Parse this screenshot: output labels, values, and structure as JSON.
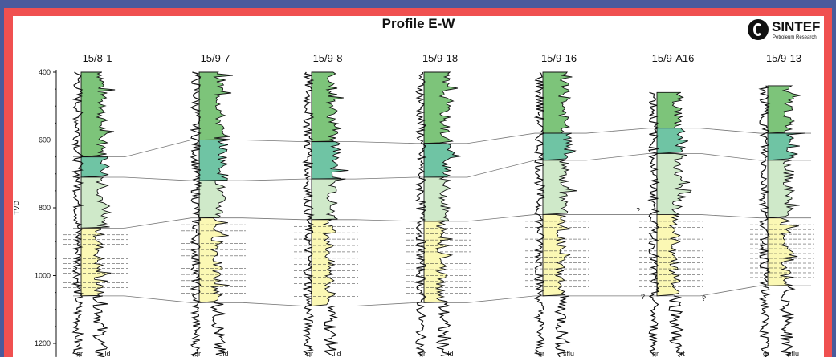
{
  "title": "Profile E-W",
  "logo": {
    "name": "SINTEF",
    "subtitle": "Petroleum Research"
  },
  "depth_axis": {
    "label": "TVD",
    "ticks": [
      "400",
      "600",
      "800",
      "1000",
      "1200"
    ],
    "range": [
      400,
      1250
    ]
  },
  "zone_colors": {
    "upper_green": "#7dc47a",
    "teal": "#6fc4a4",
    "light_green": "#cfe9c9",
    "yellow": "#fbf8b4",
    "correlation_line": "#777777"
  },
  "wells": [
    {
      "name": "15/8-1",
      "curves": [
        "gr",
        "ild"
      ],
      "top": 400,
      "tops": [
        650,
        710,
        860,
        1060
      ]
    },
    {
      "name": "15/9-7",
      "curves": [
        "gr",
        "ild"
      ],
      "top": 400,
      "tops": [
        600,
        720,
        830,
        1080
      ]
    },
    {
      "name": "15/9-8",
      "curves": [
        "gr",
        "ild"
      ],
      "top": 400,
      "tops": [
        605,
        715,
        835,
        1090
      ]
    },
    {
      "name": "15/9-18",
      "curves": [
        "gr",
        "ild"
      ],
      "top": 400,
      "tops": [
        610,
        710,
        840,
        1080
      ]
    },
    {
      "name": "15/9-16",
      "curves": [
        "gr",
        "sflu"
      ],
      "top": 400,
      "tops": [
        580,
        660,
        820,
        1060
      ]
    },
    {
      "name": "15/9-A16",
      "curves": [
        "gr",
        "rt"
      ],
      "top": 460,
      "tops": [
        565,
        640,
        820,
        1060
      ],
      "uncertain_marks": [
        "?",
        "?",
        "?"
      ]
    },
    {
      "name": "15/9-13",
      "curves": [
        "gr",
        "sflu"
      ],
      "top": 440,
      "tops": [
        580,
        660,
        830,
        1030
      ]
    }
  ]
}
